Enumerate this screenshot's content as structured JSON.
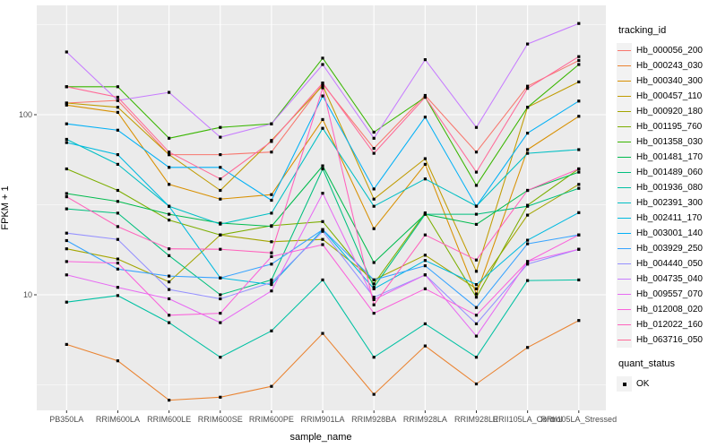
{
  "chart_data": {
    "type": "line",
    "title": "",
    "xlabel": "sample_name",
    "ylabel": "FPKM + 1",
    "y_scale": "log10",
    "ylim": [
      2.2,
      410
    ],
    "y_major_ticks": [
      100,
      10
    ],
    "y_tick_labels": [
      "100",
      "10"
    ],
    "y_minor_gridlines": [
      3.162,
      31.62,
      316.2
    ],
    "grid": "white lines on gray panel",
    "legend_position": "right",
    "legend_title": "tracking_id",
    "point_marker": "filled-black-square",
    "categories": [
      "PB350LA",
      "RRIM600LA",
      "RRIM600LE",
      "RRIM600SE",
      "RRIM600PE",
      "RRIM901LA",
      "RRIM928BA",
      "RRIM928LA",
      "RRIM928LE",
      "RRII105LA_Control",
      "RRII105LA_Stressed"
    ],
    "series": [
      {
        "name": "Hb_000056_200",
        "color": "#F8766D",
        "values": [
          116,
          120,
          60,
          60,
          62,
          148,
          65,
          128,
          62,
          144,
          200
        ]
      },
      {
        "name": "Hb_000243_030",
        "color": "#EA8331",
        "values": [
          5.3,
          4.3,
          2.6,
          2.7,
          3.1,
          6.1,
          2.8,
          5.2,
          3.2,
          5.1,
          7.2
        ]
      },
      {
        "name": "Hb_000340_300",
        "color": "#D89000",
        "values": [
          113,
          103,
          41,
          34,
          36,
          94,
          23.3,
          53,
          10.1,
          64,
          98
        ]
      },
      {
        "name": "Hb_000457_110",
        "color": "#C09B00",
        "values": [
          116,
          110,
          60,
          38,
          72,
          145,
          34,
          57,
          13.5,
          110,
          152
        ]
      },
      {
        "name": "Hb_000920_180",
        "color": "#A3A500",
        "values": [
          18,
          15.8,
          11.8,
          21.5,
          19.7,
          20.3,
          12.1,
          16.6,
          10.8,
          27.7,
          41
        ]
      },
      {
        "name": "Hb_001195_760",
        "color": "#7CAE00",
        "values": [
          50,
          38,
          26,
          21.5,
          24.2,
          25.5,
          11.5,
          28.5,
          9.7,
          31.4,
          50
        ]
      },
      {
        "name": "Hb_001358_030",
        "color": "#39B600",
        "values": [
          143,
          143,
          74,
          85,
          89,
          206,
          80,
          125,
          40.5,
          110,
          190
        ]
      },
      {
        "name": "Hb_001481_170",
        "color": "#00BB4E",
        "values": [
          36.5,
          33,
          28,
          25,
          24,
          52,
          15.1,
          28,
          24.6,
          38,
          48
        ]
      },
      {
        "name": "Hb_001489_060",
        "color": "#00BF7D",
        "values": [
          30,
          28.4,
          16.5,
          10,
          12.1,
          50,
          11,
          28,
          28,
          31,
          39
        ]
      },
      {
        "name": "Hb_001936_080",
        "color": "#00C1A3",
        "values": [
          9.1,
          9.9,
          7,
          4.5,
          6.3,
          12.1,
          4.5,
          6.9,
          4.5,
          12,
          12.1
        ]
      },
      {
        "name": "Hb_002391_300",
        "color": "#00BFC4",
        "values": [
          73,
          53,
          31,
          24.7,
          28.4,
          84,
          31,
          44,
          31.1,
          61,
          64
        ]
      },
      {
        "name": "Hb_002411_170",
        "color": "#00BAE0",
        "values": [
          70,
          60,
          31,
          12.4,
          11.4,
          23,
          10.8,
          15.5,
          11.4,
          20.1,
          28.6
        ]
      },
      {
        "name": "Hb_003001_140",
        "color": "#00B0F6",
        "values": [
          89,
          82,
          51,
          51,
          33.5,
          127,
          38.7,
          97,
          31,
          79,
          119
        ]
      },
      {
        "name": "Hb_003929_250",
        "color": "#35A2FF",
        "values": [
          20,
          13.9,
          12.7,
          12.4,
          14.8,
          23,
          12.1,
          14.5,
          8.5,
          19.2,
          21.5
        ]
      },
      {
        "name": "Hb_004440_050",
        "color": "#9590FF",
        "values": [
          22,
          20.3,
          10.7,
          9.5,
          11.7,
          22.5,
          9.7,
          12.9,
          6.9,
          14.8,
          17.9
        ]
      },
      {
        "name": "Hb_004735_040",
        "color": "#C77CFF",
        "values": [
          223,
          120,
          133,
          75,
          89,
          190,
          74,
          202,
          85,
          247,
          321
        ]
      },
      {
        "name": "Hb_009557_070",
        "color": "#E76BF3",
        "values": [
          12.9,
          11,
          9.5,
          7,
          10.5,
          36.6,
          9.4,
          12.9,
          5.9,
          15.3,
          17.9
        ]
      },
      {
        "name": "Hb_012008_020",
        "color": "#FA62DB",
        "values": [
          15.3,
          15,
          7.7,
          7.9,
          16.3,
          19,
          7.9,
          10.8,
          7.7,
          15.3,
          21.5
        ]
      },
      {
        "name": "Hb_012022_160",
        "color": "#FF62BC",
        "values": [
          35,
          23.9,
          18,
          17.9,
          17.1,
          141,
          8.8,
          21.5,
          15.6,
          38,
          50
        ]
      },
      {
        "name": "Hb_063716_050",
        "color": "#FF6A98",
        "values": [
          143,
          125,
          62,
          44,
          71,
          150,
          61,
          125,
          48,
          140,
          210
        ]
      }
    ],
    "quant_status": {
      "title": "quant_status",
      "levels": [
        {
          "label": "OK",
          "marker": "filled-black-square"
        }
      ]
    }
  },
  "colors": {
    "panel_bg": "#EBEBEB",
    "gridline": "#FFFFFF",
    "point": "#000000",
    "tick_label": "#4D4D4D",
    "legend_key_bg": "#F2F2F2",
    "outer_bg": "#FFFFFF"
  }
}
